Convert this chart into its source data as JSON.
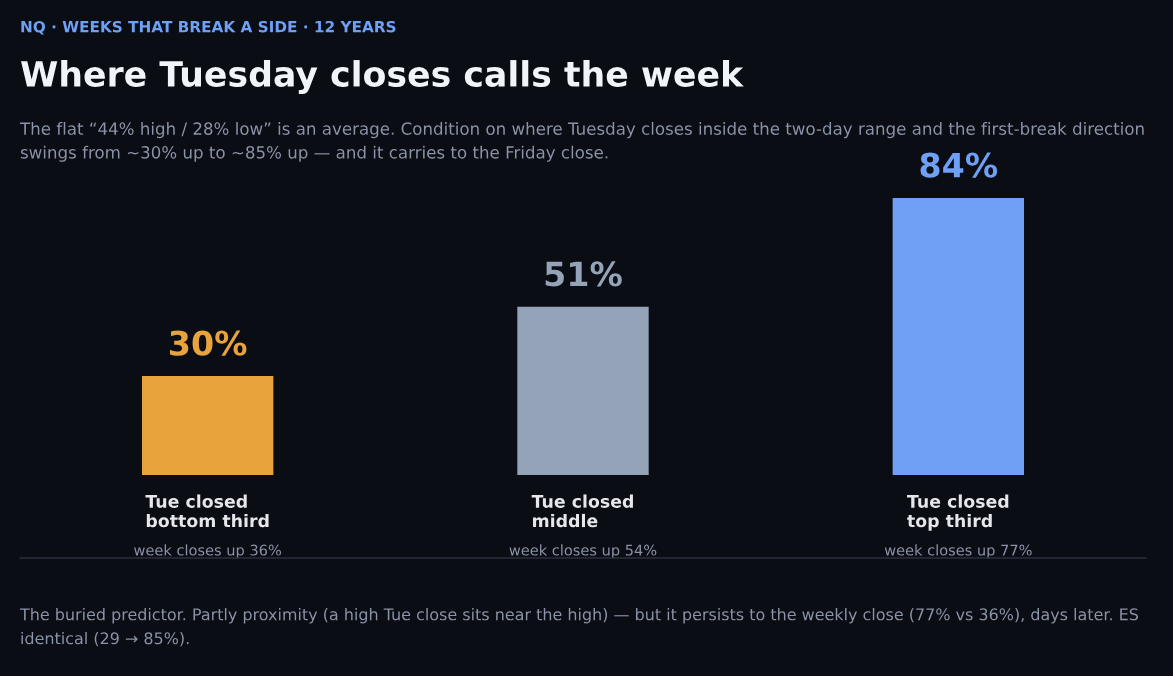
{
  "chart_data": {
    "type": "bar",
    "title": "Where Tuesday closes calls the week",
    "subtitle": "The flat “44% high / 28% low” is an average. Condition on where Tuesday closes inside the two-day range and the first-break direction swings from ~30% up to ~85% up — and it carries to the Friday close.",
    "categories": [
      "Tue closed\nbottom third",
      "Tue closed\nmiddle",
      "Tue closed\ntop third"
    ],
    "values": [
      30,
      51,
      84
    ],
    "colors": [
      "#e8a33d",
      "#94a3b8",
      "#6ea0f5"
    ],
    "value_labels": [
      "30%",
      "51%",
      "84%"
    ],
    "annotations": [
      "NQ · WEEKS THAT BREAK A SIDE · 12 YEARS",
      "week closes up 36%",
      "week closes up 54%",
      "week closes up 77%",
      "The buried predictor. Partly proximity (a high Tue close sits near the high) — but it persists to the weekly close (77% vs 36%), days later. ES identical (29 → 85%)."
    ]
  }
}
